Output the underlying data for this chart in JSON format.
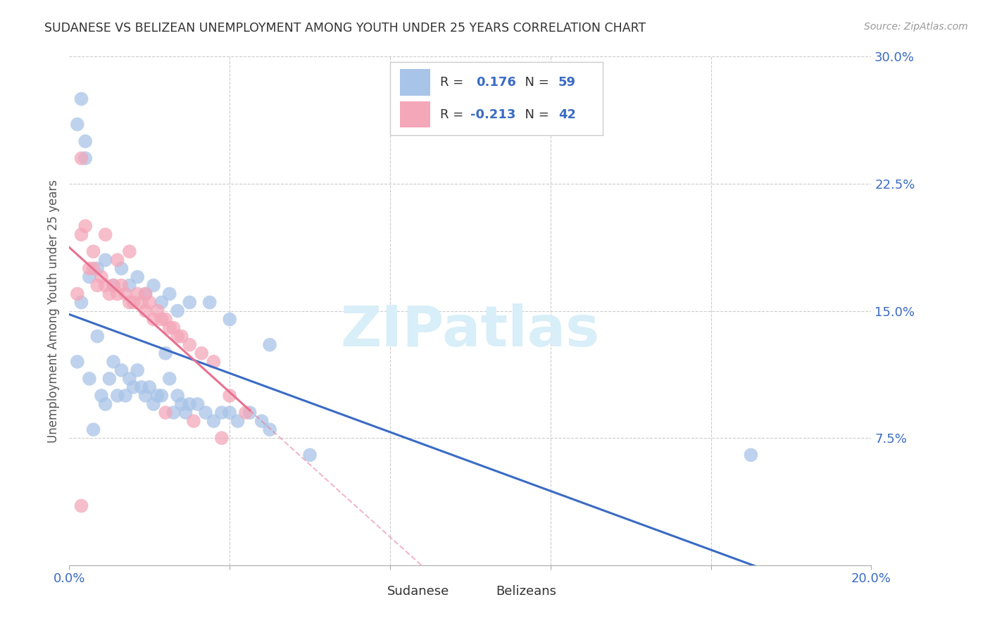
{
  "title": "SUDANESE VS BELIZEAN UNEMPLOYMENT AMONG YOUTH UNDER 25 YEARS CORRELATION CHART",
  "source": "Source: ZipAtlas.com",
  "ylabel": "Unemployment Among Youth under 25 years",
  "xlim": [
    0.0,
    0.2
  ],
  "ylim": [
    0.0,
    0.3
  ],
  "sudanese_R": 0.176,
  "sudanese_N": 59,
  "belizean_R": -0.213,
  "belizean_N": 42,
  "sudanese_color": "#A8C4E8",
  "belizean_color": "#F4A7B9",
  "sudanese_line_color": "#3A6BC4",
  "belizean_line_color": "#E87090",
  "sudanese_x": [
    0.002,
    0.003,
    0.004,
    0.005,
    0.006,
    0.007,
    0.008,
    0.009,
    0.01,
    0.011,
    0.012,
    0.013,
    0.014,
    0.015,
    0.016,
    0.017,
    0.018,
    0.019,
    0.02,
    0.021,
    0.022,
    0.023,
    0.024,
    0.025,
    0.026,
    0.027,
    0.028,
    0.029,
    0.03,
    0.032,
    0.034,
    0.036,
    0.038,
    0.04,
    0.042,
    0.045,
    0.048,
    0.05,
    0.003,
    0.005,
    0.007,
    0.009,
    0.011,
    0.013,
    0.015,
    0.017,
    0.019,
    0.021,
    0.023,
    0.025,
    0.027,
    0.03,
    0.035,
    0.04,
    0.05,
    0.06,
    0.17,
    0.002,
    0.004
  ],
  "sudanese_y": [
    0.12,
    0.275,
    0.25,
    0.11,
    0.08,
    0.135,
    0.1,
    0.095,
    0.11,
    0.12,
    0.1,
    0.115,
    0.1,
    0.11,
    0.105,
    0.115,
    0.105,
    0.1,
    0.105,
    0.095,
    0.1,
    0.1,
    0.125,
    0.11,
    0.09,
    0.1,
    0.095,
    0.09,
    0.095,
    0.095,
    0.09,
    0.085,
    0.09,
    0.09,
    0.085,
    0.09,
    0.085,
    0.08,
    0.155,
    0.17,
    0.175,
    0.18,
    0.165,
    0.175,
    0.165,
    0.17,
    0.16,
    0.165,
    0.155,
    0.16,
    0.15,
    0.155,
    0.155,
    0.145,
    0.13,
    0.065,
    0.065,
    0.26,
    0.24
  ],
  "belizean_x": [
    0.002,
    0.003,
    0.004,
    0.005,
    0.006,
    0.007,
    0.008,
    0.009,
    0.01,
    0.011,
    0.012,
    0.013,
    0.014,
    0.015,
    0.016,
    0.017,
    0.018,
    0.019,
    0.02,
    0.021,
    0.022,
    0.023,
    0.024,
    0.025,
    0.026,
    0.027,
    0.028,
    0.03,
    0.033,
    0.036,
    0.04,
    0.044,
    0.003,
    0.006,
    0.009,
    0.012,
    0.015,
    0.019,
    0.024,
    0.031,
    0.038,
    0.003
  ],
  "belizean_y": [
    0.16,
    0.24,
    0.2,
    0.175,
    0.175,
    0.165,
    0.17,
    0.165,
    0.16,
    0.165,
    0.16,
    0.165,
    0.16,
    0.155,
    0.155,
    0.16,
    0.155,
    0.15,
    0.155,
    0.145,
    0.15,
    0.145,
    0.145,
    0.14,
    0.14,
    0.135,
    0.135,
    0.13,
    0.125,
    0.12,
    0.1,
    0.09,
    0.195,
    0.185,
    0.195,
    0.18,
    0.185,
    0.16,
    0.09,
    0.085,
    0.075,
    0.035
  ]
}
